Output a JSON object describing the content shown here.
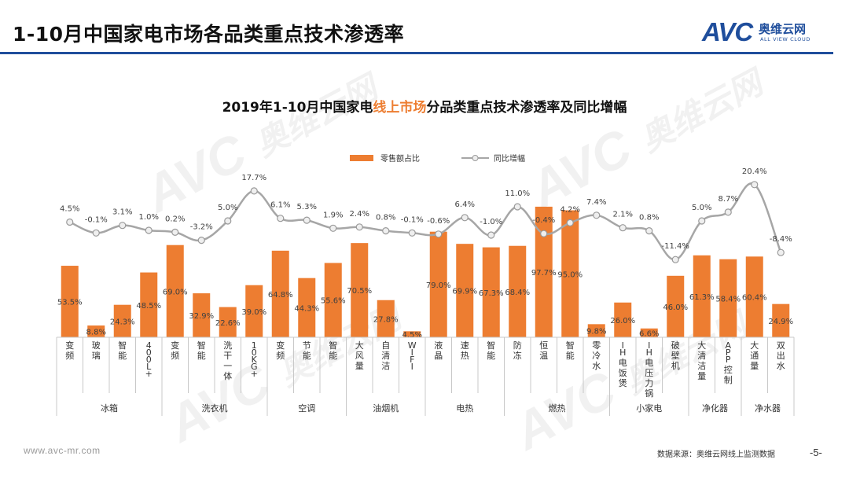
{
  "header": {
    "title": "1-10月中国家电市场各品类重点技术渗透率",
    "logo_mark": "AVC",
    "logo_cn": "奥维云网",
    "logo_en": "ALL VIEW CLOUD"
  },
  "watermark": {
    "mark": "AVC",
    "text": "奥维云网",
    "sub": "ALL VIEW CLOUD"
  },
  "chart_data": {
    "type": "bar",
    "title_parts": [
      "2019年1-10月中国家电",
      "线上市场",
      "分品类重点技术渗透率及同比增幅"
    ],
    "series": [
      {
        "name": "零售额占比",
        "type": "bar",
        "color": "#ed7d31",
        "values": [
          53.5,
          8.8,
          24.3,
          48.5,
          69.0,
          32.9,
          22.6,
          39.0,
          64.8,
          44.3,
          55.6,
          70.5,
          27.8,
          4.5,
          79.0,
          69.9,
          67.3,
          68.4,
          97.7,
          95.0,
          9.8,
          26.0,
          6.6,
          46.0,
          61.3,
          58.4,
          60.4,
          24.9
        ],
        "labels": [
          "53.5%",
          "8.8%",
          "24.3%",
          "48.5%",
          "69.0%",
          "32.9%",
          "22.6%",
          "39.0%",
          "64.8%",
          "44.3%",
          "55.6%",
          "70.5%",
          "27.8%",
          "4.5%",
          "79.0%",
          "69.9%",
          "67.3%",
          "68.4%",
          "97.7%",
          "95.0%",
          "9.8%",
          "26.0%",
          "6.6%",
          "46.0%",
          "61.3%",
          "58.4%",
          "60.4%",
          "24.9%"
        ]
      },
      {
        "name": "同比增幅",
        "type": "line",
        "color": "#a6a6a6",
        "values": [
          4.5,
          -0.1,
          3.1,
          1.0,
          0.2,
          -3.2,
          5.0,
          17.7,
          6.1,
          5.3,
          1.9,
          2.4,
          0.8,
          -0.1,
          -0.6,
          6.4,
          -1.0,
          11.0,
          -0.4,
          4.2,
          7.4,
          2.1,
          0.8,
          -11.4,
          5.0,
          8.7,
          20.4,
          -8.4
        ],
        "labels": [
          "4.5%",
          "-0.1%",
          "3.1%",
          "1.0%",
          "0.2%",
          "-3.2%",
          "5.0%",
          "17.7%",
          "6.1%",
          "5.3%",
          "1.9%",
          "2.4%",
          "0.8%",
          "-0.1%",
          "-0.6%",
          "6.4%",
          "-1.0%",
          "11.0%",
          "-0.4%",
          "4.2%",
          "7.4%",
          "2.1%",
          "0.8%",
          "-11.4%",
          "5.0%",
          "8.7%",
          "20.4%",
          "-8.4%"
        ]
      }
    ],
    "categories": [
      "变频",
      "玻璃",
      "智能",
      "400L+",
      "变频",
      "智能",
      "洗干一体",
      "10KG+",
      "变频",
      "节能",
      "智能",
      "大风量",
      "自清洁",
      "WIFI",
      "液晶",
      "速热",
      "智能",
      "防冻",
      "恒温",
      "智能",
      "零冷水",
      "IH电饭煲",
      "IH电压力锅",
      "破壁机",
      "大清洁量",
      "APP控制",
      "大通量",
      "双出水"
    ],
    "groups": [
      {
        "name": "冰箱",
        "count": 4
      },
      {
        "name": "洗衣机",
        "count": 4
      },
      {
        "name": "空调",
        "count": 3
      },
      {
        "name": "油烟机",
        "count": 3
      },
      {
        "name": "电热",
        "count": 3
      },
      {
        "name": "燃热",
        "count": 4
      },
      {
        "name": "小家电",
        "count": 3
      },
      {
        "name": "净化器",
        "count": 2
      },
      {
        "name": "净水器",
        "count": 2
      }
    ],
    "legend_position": "top-center"
  },
  "footer": {
    "url": "www.avc-mr.com",
    "source": "数据来源：奥维云网线上监测数据",
    "page": "-5-"
  }
}
